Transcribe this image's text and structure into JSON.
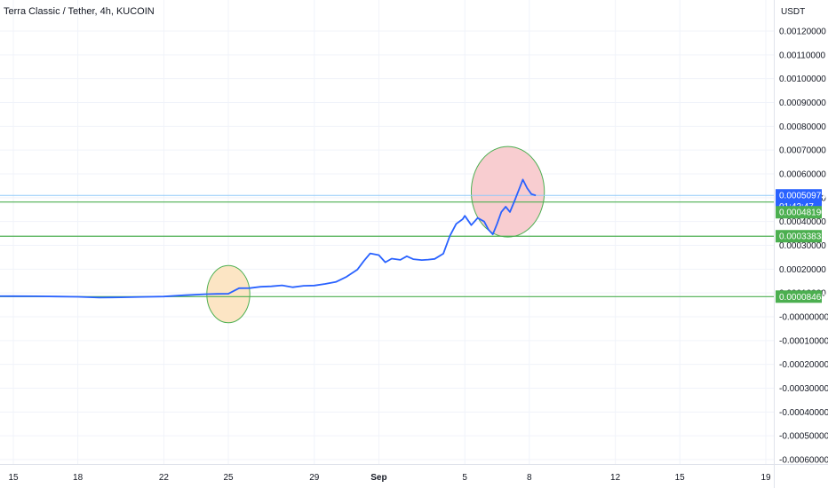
{
  "title": "Terra Classic / Tether, 4h, KUCOIN",
  "y_unit": "USDT",
  "colors": {
    "line": "#2962ff",
    "level": "#4caf50",
    "current_price": "#2962ff",
    "last_price_line": "#90caf9",
    "orange_circle_fill": "#fce5c4",
    "red_circle_fill": "#f8cdd0",
    "circle_stroke": "#4caf50"
  },
  "current_price": {
    "value": "0.00050973",
    "countdown": "01:42:47"
  },
  "levels": [
    {
      "label": "0.00048190"
    },
    {
      "label": "0.00033833"
    },
    {
      "label": "0.00008463"
    }
  ],
  "chart_data": {
    "type": "line",
    "title": "Terra Classic / Tether, 4h, KUCOIN",
    "ylabel": "USDT",
    "x_ticks": [
      "15",
      "18",
      "22",
      "25",
      "29",
      "Sep",
      "5",
      "8",
      "12",
      "15",
      "19"
    ],
    "y_ticks": [
      "0.00120000",
      "0.00110000",
      "0.00100000",
      "0.00090000",
      "0.00080000",
      "0.00070000",
      "0.00060000",
      "0.00050000",
      "0.00040000",
      "0.00030000",
      "0.00020000",
      "0.00010000",
      "-0.00000000",
      "-0.00010000",
      "-0.00020000",
      "-0.00030000",
      "-0.00040000",
      "-0.00050000",
      "-0.00060000"
    ],
    "ylim": [
      -0.00065,
      0.00123
    ],
    "xlim": [
      14.2,
      50.2
    ],
    "x_tick_positions": [
      15,
      18,
      22,
      25,
      29,
      32,
      36,
      39,
      43,
      46,
      50
    ],
    "series": [
      {
        "x": [
          14.2,
          15,
          16,
          17,
          18,
          19,
          20,
          21,
          22,
          23,
          24,
          24.5,
          25,
          25.5,
          26,
          26.5,
          27,
          27.5,
          28,
          28.5,
          29,
          29.5,
          30,
          30.5,
          31,
          31.3,
          31.6,
          32,
          32.3,
          32.6,
          33,
          33.3,
          33.6,
          34,
          34.3,
          34.6,
          35,
          35.3,
          35.6,
          35.9,
          36,
          36.3,
          36.6,
          36.9,
          37.1,
          37.3,
          37.5,
          37.7,
          37.9,
          38.1,
          38.3,
          38.5,
          38.7,
          38.9,
          39.1,
          39.3
        ],
        "y": [
          8.7e-05,
          8.65e-05,
          8.6e-05,
          8.5e-05,
          8.4e-05,
          8.05e-05,
          8.15e-05,
          8.35e-05,
          8.5e-05,
          9.05e-05,
          9.5e-05,
          9.6e-05,
          9.65e-05,
          0.00012,
          0.0001205,
          0.000126,
          0.000128,
          0.000132,
          0.000124,
          0.00013,
          0.000131,
          0.000138,
          0.000146,
          0.000168,
          0.000198,
          0.000234,
          0.000266,
          0.000259,
          0.000229,
          0.000244,
          0.000239,
          0.000254,
          0.000242,
          0.000238,
          0.00024,
          0.000243,
          0.000265,
          0.000339,
          0.00039,
          0.00041,
          0.000424,
          0.000385,
          0.000415,
          0.0004,
          0.000366,
          0.000346,
          0.00039,
          0.00044,
          0.000462,
          0.00044,
          0.000484,
          0.00053,
          0.000576,
          0.00054,
          0.000515,
          0.00050973
        ]
      }
    ],
    "horizontal_levels": [
      0.0004819,
      0.00033833,
      8.463e-05
    ],
    "last_price": 0.00050973,
    "annotations": [
      {
        "shape": "ellipse",
        "fill": "orange",
        "cx": 25.0,
        "cy": 9.5e-05,
        "rx_days": 1.0,
        "ry": 0.00012
      },
      {
        "shape": "ellipse",
        "fill": "red",
        "cx": 38.0,
        "cy": 0.000525,
        "rx_days": 1.7,
        "ry": 0.00019
      }
    ],
    "grid": true
  }
}
